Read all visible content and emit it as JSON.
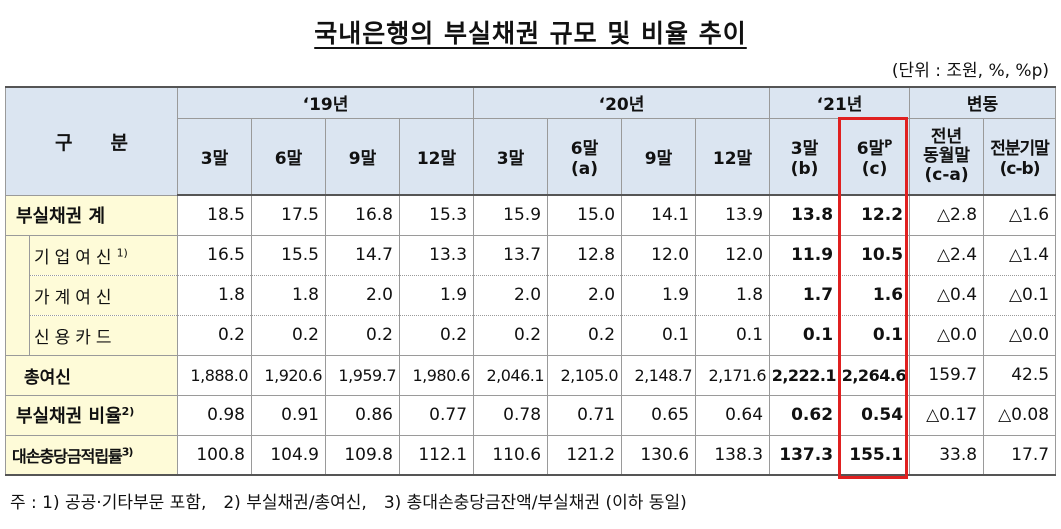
{
  "title": "국내은행의 부실채권 규모 및 비율 추이",
  "unit": "(단위 : 조원, %, %p)",
  "header": {
    "category": "구　　분",
    "groups": [
      "‘19년",
      "‘20년",
      "‘21년",
      "변동"
    ],
    "columns_19": [
      "3말",
      "6말",
      "9말",
      "12말"
    ],
    "columns_20": [
      "3말",
      "6말",
      "9말",
      "12말"
    ],
    "col_20_6_sub": "(a)",
    "col_21_3": "3말",
    "col_21_3_sub": "(b)",
    "col_21_6": "6말",
    "col_21_6_sup": "P",
    "col_21_6_sub": "(c)",
    "chg_yoy_line1": "전년",
    "chg_yoy_line2": "동월말",
    "chg_yoy_sub": "(c-a)",
    "chg_qoq": "전분기말",
    "chg_qoq_sub": "(c-b)"
  },
  "rows": [
    {
      "label": "부실채권 계",
      "values": [
        "18.5",
        "17.5",
        "16.8",
        "15.3",
        "15.9",
        "15.0",
        "14.1",
        "13.9",
        "13.8",
        "12.2"
      ],
      "chg": [
        "△2.8",
        "△1.6"
      ]
    },
    {
      "label": "기업여신",
      "sup": "1)",
      "values": [
        "16.5",
        "15.5",
        "14.7",
        "13.3",
        "13.7",
        "12.8",
        "12.0",
        "12.0",
        "11.9",
        "10.5"
      ],
      "chg": [
        "△2.4",
        "△1.4"
      ]
    },
    {
      "label": "가계여신",
      "values": [
        "1.8",
        "1.8",
        "2.0",
        "1.9",
        "2.0",
        "2.0",
        "1.9",
        "1.8",
        "1.7",
        "1.6"
      ],
      "chg": [
        "△0.4",
        "△0.1"
      ]
    },
    {
      "label": "신용카드",
      "values": [
        "0.2",
        "0.2",
        "0.2",
        "0.2",
        "0.2",
        "0.2",
        "0.1",
        "0.1",
        "0.1",
        "0.1"
      ],
      "chg": [
        "△0.0",
        "△0.0"
      ]
    },
    {
      "label": "총여신",
      "values": [
        "1,888.0",
        "1,920.6",
        "1,959.7",
        "1,980.6",
        "2,046.1",
        "2,105.0",
        "2,148.7",
        "2,171.6",
        "2,222.1",
        "2,264.6"
      ],
      "chg": [
        "159.7",
        "42.5"
      ]
    },
    {
      "label": "부실채권 비율",
      "sup": "2)",
      "values": [
        "0.98",
        "0.91",
        "0.86",
        "0.77",
        "0.78",
        "0.71",
        "0.65",
        "0.64",
        "0.62",
        "0.54"
      ],
      "chg": [
        "△0.17",
        "△0.08"
      ]
    },
    {
      "label": "대손충당금적립률",
      "sup": "3)",
      "values": [
        "100.8",
        "104.9",
        "109.8",
        "112.1",
        "110.6",
        "121.2",
        "130.6",
        "138.3",
        "137.3",
        "155.1"
      ],
      "chg": [
        "33.8",
        "17.7"
      ]
    }
  ],
  "footnote": "주 : 1) 공공·기타부문 포함,　2) 부실채권/총여신,　3) 총대손충당금잔액/부실채권 (이하 동일)",
  "highlight_color": "#e02020"
}
